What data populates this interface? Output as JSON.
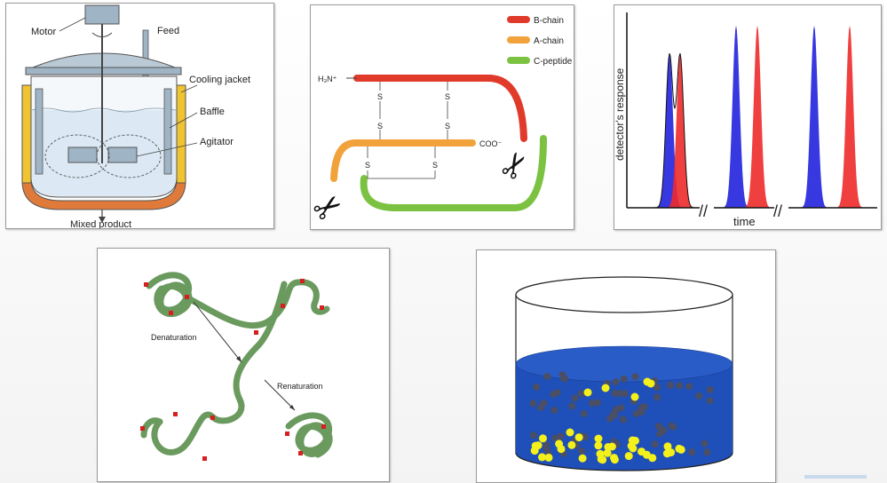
{
  "reactor": {
    "motor": "Motor",
    "feed": "Feed",
    "cooling_jacket": "Cooling jacket",
    "baffle": "Baffle",
    "agitator": "Agitator",
    "mixed_product": "Mixed product",
    "colors": {
      "jacket": "#f0c330",
      "bottom": "#e07a3a",
      "liquid": "#dce9f5",
      "steel": "#9fb4c4"
    }
  },
  "insulin": {
    "legend": [
      {
        "label": "B-chain",
        "color": "#e03a2a"
      },
      {
        "label": "A-chain",
        "color": "#f2a23a"
      },
      {
        "label": "C-peptide",
        "color": "#7cc242"
      }
    ],
    "n_terminus": "H₃N⁺",
    "c_terminus": "COO⁻",
    "bond": "S",
    "scissors": "✂"
  },
  "chromatogram": {
    "ylabel": "detector's response",
    "xlabel": "time",
    "break": "//",
    "colors": {
      "blue": "#2222dd",
      "red": "#ee2a2a"
    }
  },
  "protein": {
    "denaturation": "Denaturation",
    "renaturation": "Renaturation",
    "colors": {
      "chain": "#6a9a5e",
      "mark": "#d42020"
    }
  },
  "beaker": {
    "colors": {
      "liquid": "#1f4fb8",
      "dark_particle": "#4a4f66",
      "bright_particle": "#f4f01c"
    }
  },
  "footer": {
    "text": "_"
  }
}
